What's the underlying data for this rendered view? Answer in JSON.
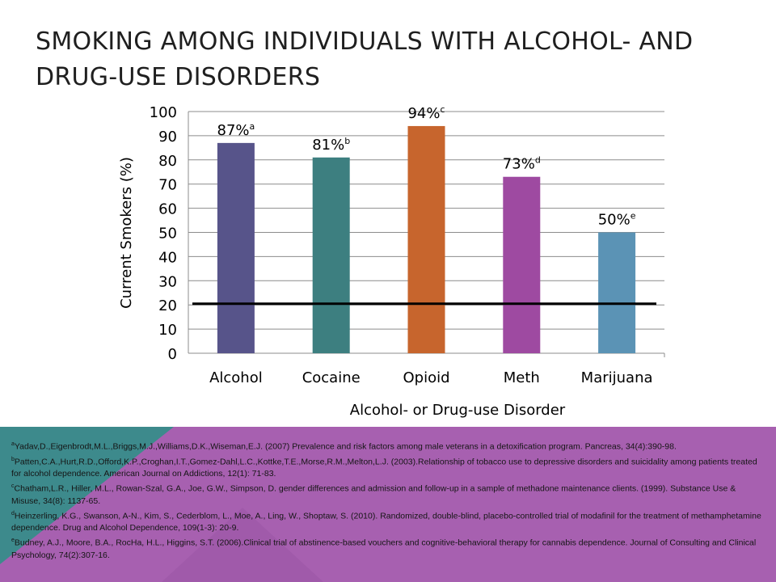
{
  "slide": {
    "title": "SMOKING AMONG INDIVIDUALS WITH ALCOHOL- AND DRUG-USE DISORDERS"
  },
  "chart_data": {
    "type": "bar",
    "title": "",
    "xlabel": "Alcohol- or Drug-use Disorder",
    "ylabel": "Current Smokers (%)",
    "ylim": [
      0,
      100
    ],
    "yticks": [
      0,
      10,
      20,
      30,
      40,
      50,
      60,
      70,
      80,
      90,
      100
    ],
    "grid": true,
    "categories": [
      "Alcohol",
      "Cocaine",
      "Opioid",
      "Meth",
      "Marijuana"
    ],
    "values": [
      87,
      81,
      94,
      73,
      50
    ],
    "data_labels": [
      "87%",
      "81%",
      "94%",
      "73%",
      "50%"
    ],
    "label_superscripts": [
      "a",
      "b",
      "c",
      "d",
      "e"
    ],
    "colors": [
      "#57548a",
      "#3d7f80",
      "#c7652d",
      "#9e4aa1",
      "#5b93b5"
    ],
    "reference_line": {
      "value": 20.5,
      "color": "#000000"
    }
  },
  "references": [
    {
      "mark": "a",
      "text": "Yadav,D.,Eigenbrodt,M.L.,Briggs,M.J.,Williams,D.K.,Wiseman,E.J.  (2007) Prevalence and risk factors among male veterans in a detoxification program. Pancreas, 34(4):390-98."
    },
    {
      "mark": "b",
      "text": "Patten,C.A.,Hurt,R.D.,Offord,K.P.,Croghan,I.T.,Gomez-Dahl,L.C.,Kottke,T.E.,Morse,R.M.,Melton,L.J.  (2003).Relationship of tobacco use to depressive disorders and suicidality among patients treated for alcohol dependence. American Journal on Addictions, 12(1): 71-83."
    },
    {
      "mark": "c",
      "text": "Chatham,L.R., Hiller, M.L., Rowan-Szal, G.A., Joe, G.W., Simpson, D. gender differences and admission and follow-up in a sample of methadone maintenance clients. (1999). Substance Use & Misuse, 34(8): 1137-65."
    },
    {
      "mark": "d",
      "text": "Heinzerling, K.G., Swanson, A-N., Kim, S., Cederblom, L., Moe, A., Ling, W., Shoptaw, S. (2010). Randomized, double-blind, placebo-controlled trial of modafinil for the treatment of methamphetamine dependence. Drug and Alcohol Dependence, 109(1-3): 20-9."
    },
    {
      "mark": "e",
      "text": "Budney, A.J., Moore, B.A., RocHa, H.L., Higgins, S.T. (2006).Clinical trial of abstinence-based vouchers and cognitive-behavioral therapy for cannabis dependence. Journal of Consulting and Clinical Psychology, 74(2):307-16."
    }
  ],
  "theme": {
    "footer_teal": "#3d8a8c",
    "footer_purple": "#a760b0"
  }
}
